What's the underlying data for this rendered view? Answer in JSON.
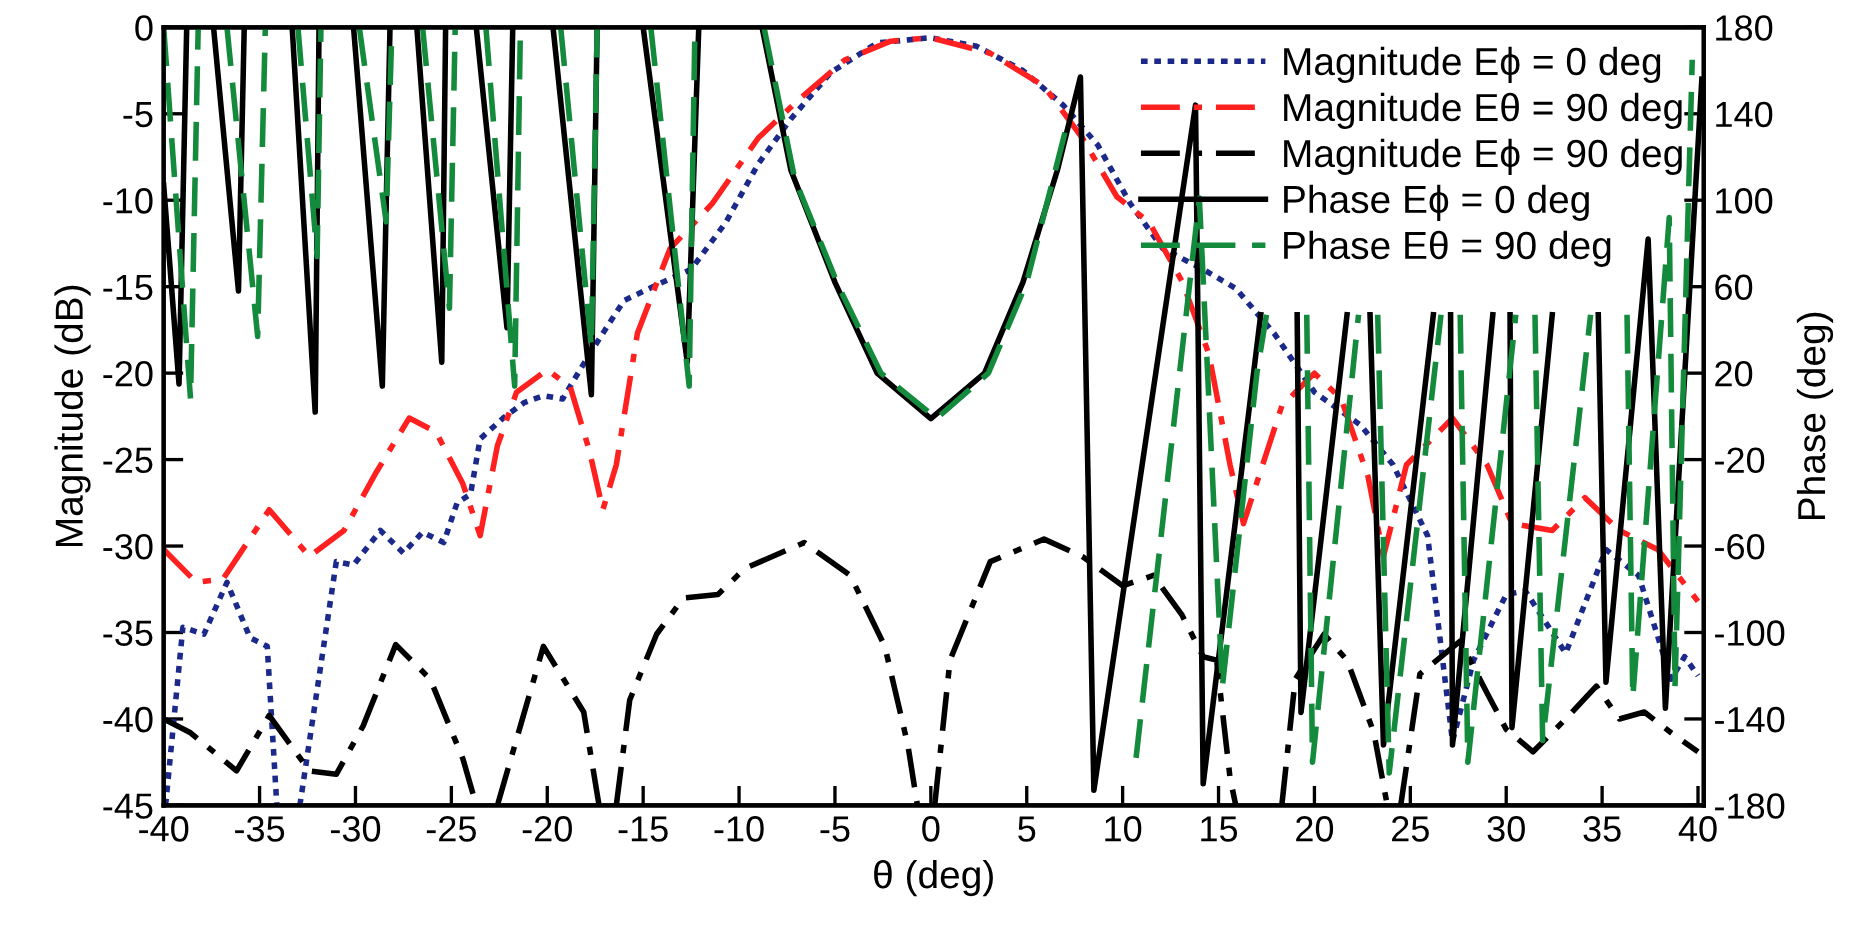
{
  "chart_data": {
    "type": "line",
    "xlabel": "θ (deg)",
    "ylabel": "Magnitude (dB)",
    "y2label": "Phase (deg)",
    "xlim": [
      -40,
      40.3
    ],
    "xticks": [
      -40,
      -35,
      -30,
      -25,
      -20,
      -15,
      -10,
      -5,
      0,
      5,
      10,
      15,
      20,
      25,
      30,
      35,
      40
    ],
    "ylim": [
      -45,
      0
    ],
    "yticks": [
      -45,
      -40,
      -35,
      -30,
      -25,
      -20,
      -15,
      -10,
      -5,
      0
    ],
    "y2lim": [
      -180,
      180
    ],
    "y2ticks": [
      -180,
      -140,
      -100,
      -60,
      -20,
      20,
      60,
      100,
      140,
      180
    ],
    "grid": false,
    "legend": "top right",
    "series": [
      {
        "name": "Magnitude Eϕ = 0 deg",
        "color": "#1b2a8a",
        "line_style": "dotted",
        "x": [
          -39.9,
          -39,
          -37.9,
          -36.7,
          -35.5,
          -34.6,
          -34.1,
          -33.5,
          -32.9,
          -31,
          -30.1,
          -28.7,
          -27.5,
          -26.5,
          -25.4,
          -24.7,
          -24,
          -23.5,
          -22.3,
          -21.2,
          -20.2,
          -19.2,
          -17.8,
          -16,
          -14.3,
          -12.5,
          -10.7,
          -9,
          -7.3,
          -5.2,
          -2.8,
          0,
          2.4,
          4.8,
          6.9,
          8.7,
          10.4,
          12.1,
          14.2,
          15.9,
          17.9,
          20,
          22.4,
          24.1,
          25.9,
          27.2,
          28.3,
          30,
          31,
          33.1,
          35.2,
          36.9,
          38.6,
          39.3,
          40
        ],
        "values": [
          -45,
          -34.7,
          -35.1,
          -32.1,
          -35.3,
          -35.8,
          -45,
          null,
          -45,
          -30.9,
          -31.1,
          -29.1,
          -30.4,
          -29.2,
          -29.8,
          -27.5,
          -27,
          -23.8,
          -22.6,
          -21.7,
          -21.3,
          -21.5,
          -18.9,
          -15.8,
          -14.9,
          -14,
          -11.3,
          -7.9,
          -5.3,
          -2.6,
          -0.9,
          -0.6,
          -1.1,
          -2.5,
          -4.5,
          -6.8,
          -10.2,
          -12.8,
          -14,
          -15.1,
          -17.7,
          -21.1,
          -23,
          -25.3,
          -29.4,
          -41.3,
          -36.6,
          -32.8,
          -32.6,
          -36.2,
          -30.2,
          -31.7,
          -37.7,
          -36.4,
          -37.5
        ]
      },
      {
        "name": "Magnitude Eθ = 90 deg",
        "color": "#ff2020",
        "line_style": "dashdot",
        "x": [
          -40,
          -38.3,
          -36.9,
          -34.5,
          -32.4,
          -30.6,
          -28.9,
          -27.2,
          -25.8,
          -24.4,
          -23.5,
          -22.6,
          -21.6,
          -20,
          -18.8,
          -17.8,
          -17.1,
          -16.4,
          -15.3,
          -13.6,
          -11.4,
          -9,
          -6.9,
          -4.5,
          -2.1,
          0,
          3.1,
          5.9,
          7.9,
          9.7,
          11.4,
          13.1,
          14.5,
          15.6,
          16.3,
          18.3,
          20,
          21.4,
          22.8,
          23.6,
          24.8,
          27.2,
          29,
          30.3,
          32.4,
          34.1,
          35.9,
          37.9,
          40
        ],
        "values": [
          -30.2,
          -32.1,
          -31.9,
          -27.9,
          -30.6,
          -29.1,
          -25.7,
          -22.6,
          -23.4,
          -26.4,
          -29.4,
          -24.2,
          -21.1,
          -19.8,
          -20.8,
          -24.5,
          -27.9,
          -25.3,
          -17.7,
          -12.8,
          -10.2,
          -6.4,
          -4.2,
          -1.9,
          -0.8,
          -0.6,
          -1.5,
          -3.4,
          -6.4,
          -9.8,
          -11.3,
          -14.7,
          -18.9,
          -25.3,
          -28.7,
          -21.9,
          -20,
          -21.5,
          -26,
          -30.6,
          -25.3,
          -22.6,
          -25.3,
          -28.7,
          -29.1,
          -27.2,
          -29.1,
          -30.2,
          -33.2
        ]
      },
      {
        "name": "Magnitude Eϕ = 90 deg",
        "color": "#000000",
        "line_style": "dashdot",
        "x": [
          -40,
          -38.6,
          -36.2,
          -34.5,
          -32.4,
          -31,
          -29.6,
          -27.9,
          -26.1,
          -24.4,
          -23.7,
          -23.2,
          -22.6,
          -20.2,
          -18.1,
          -17.3,
          -16.9,
          -16.4,
          -15.7,
          -14.3,
          -12.9,
          -11.1,
          -9.7,
          -6.6,
          -4.2,
          -2.4,
          -1.2,
          -0.7,
          -0.2,
          0.2,
          1,
          3.1,
          5.9,
          7.9,
          10,
          11.6,
          13.1,
          14.2,
          14.9,
          15.6,
          15.9,
          17,
          18.3,
          19,
          20.5,
          21.7,
          23.1,
          23.8,
          24.2,
          24.5,
          25.5,
          27.6,
          29,
          30,
          31.4,
          33.1,
          34.7,
          35.9,
          37.2,
          38.6,
          40
        ],
        "values": [
          -40,
          -40.8,
          -43,
          -39.8,
          -43,
          -43.2,
          -40.4,
          -35.7,
          -37.7,
          -42.3,
          -45,
          null,
          -45,
          -35.8,
          -39.6,
          -45,
          null,
          -45,
          -38.9,
          -35.1,
          -33,
          -32.8,
          -31.3,
          -29.8,
          -31.7,
          -35.8,
          -41.5,
          -45,
          null,
          -45,
          -36.6,
          -30.9,
          -29.6,
          -30.6,
          -32.3,
          -31.7,
          -34,
          -36.4,
          -36.6,
          -43.4,
          -45,
          null,
          -45,
          -37.7,
          -35.1,
          -36.6,
          -40.8,
          -45,
          null,
          -45,
          -37.4,
          -35.5,
          -38.5,
          -40.6,
          -41.9,
          -40,
          -38.1,
          -40,
          -39.6,
          -40.8,
          -41.9
        ]
      },
      {
        "name": "Phase Eϕ = 0 deg",
        "color": "#000000",
        "line_style": "solid",
        "axis": "y2",
        "x": [
          -40,
          -39.2,
          -38.8,
          -38.1,
          -37.4,
          -36.1,
          -35.8,
          -34.5,
          -33.3,
          -32.1,
          -31.9,
          -31,
          -30.1,
          -28.6,
          -28.2,
          -27.5,
          -26.8,
          -25.5,
          -25.3,
          -24.5,
          -23.7,
          -22.1,
          -21.8,
          -20.8,
          -19.7,
          -17.7,
          -17.4,
          -16.2,
          -15,
          -12.7,
          -12.1,
          -10.5,
          -8.8,
          -7.3,
          -5,
          -2.8,
          0,
          2.8,
          4.8,
          6.6,
          7.8,
          8.5,
          13.8,
          14.2,
          17.2,
          18.2,
          19.1,
          19.3,
          21.7,
          22.3,
          22.9,
          23.6,
          26.2,
          26.6,
          27.1,
          27.2,
          29.3,
          29.7,
          30.2,
          30.3,
          32.4,
          33.5,
          34.8,
          35.2,
          37.4,
          38.3,
          40.2
        ],
        "values": [
          107,
          15,
          180,
          null,
          180,
          58,
          180,
          null,
          180,
          2,
          180,
          null,
          180,
          14,
          180,
          null,
          180,
          25,
          180,
          null,
          180,
          41,
          180,
          null,
          180,
          10,
          180,
          null,
          180,
          25,
          180,
          null,
          180,
          114,
          62,
          20,
          -1,
          20,
          62,
          114,
          157,
          -173,
          144,
          -170,
          47,
          null,
          47,
          -137,
          47,
          null,
          47,
          -152,
          47,
          null,
          47,
          -152,
          47,
          null,
          47,
          -144,
          47,
          null,
          47,
          -123,
          82,
          -135,
          156
        ]
      },
      {
        "name": "Phase Eθ = 90 deg",
        "color": "#148a3c",
        "line_style": "dashed",
        "axis": "y2",
        "x": [
          -40,
          -38.6,
          -38.2,
          -37.5,
          -36.7,
          -35.1,
          -34.7,
          -33.8,
          -33,
          -32,
          -31.8,
          -30.8,
          -29.8,
          -28.4,
          -28.1,
          -27.3,
          -26.5,
          -25.1,
          -24.8,
          -24,
          -23.2,
          -21.7,
          -21.4,
          -20.3,
          -19.3,
          -17.7,
          -17.4,
          -16,
          -14.6,
          -12.6,
          -12.3,
          -10.5,
          -8.7,
          -7.1,
          -4.8,
          -2.6,
          0.3,
          3,
          5,
          7.1,
          8,
          10.7,
          14,
          15.2,
          17,
          17.5,
          18.5,
          19.6,
          19.9,
          22.3,
          22.8,
          23.3,
          23.9,
          26.6,
          27,
          27.6,
          28,
          30.5,
          31,
          31.5,
          31.9,
          34.4,
          35,
          36.3,
          36.6,
          38.5,
          38.8,
          39.7
        ],
        "values": [
          180,
          8,
          180,
          null,
          180,
          37,
          180,
          null,
          180,
          74,
          180,
          null,
          180,
          90,
          180,
          null,
          180,
          50,
          180,
          null,
          180,
          14,
          180,
          null,
          180,
          32,
          180,
          null,
          180,
          14,
          180,
          null,
          180,
          110,
          60,
          20,
          -1,
          20,
          62,
          135,
          null,
          -158,
          101,
          -125,
          20,
          47,
          null,
          47,
          -160,
          47,
          null,
          47,
          -165,
          47,
          null,
          47,
          -160,
          47,
          null,
          47,
          -150,
          47,
          null,
          47,
          -130,
          92,
          -125,
          165
        ]
      }
    ]
  }
}
